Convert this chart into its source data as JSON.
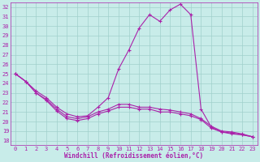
{
  "xlabel": "Windchill (Refroidissement éolien,°C)",
  "xlim": [
    -0.5,
    23.5
  ],
  "ylim": [
    17.5,
    32.5
  ],
  "yticks": [
    18,
    19,
    20,
    21,
    22,
    23,
    24,
    25,
    26,
    27,
    28,
    29,
    30,
    31,
    32
  ],
  "xticks": [
    0,
    1,
    2,
    3,
    4,
    5,
    6,
    7,
    8,
    9,
    10,
    11,
    12,
    13,
    14,
    15,
    16,
    17,
    18,
    19,
    20,
    21,
    22,
    23
  ],
  "bg_color": "#c8ece9",
  "grid_color": "#a0d0cc",
  "line_color": "#aa22aa",
  "line1_x": [
    0,
    1,
    2,
    3,
    4,
    5,
    6,
    7,
    8,
    9,
    10,
    11,
    12,
    13,
    14,
    15,
    16,
    17,
    18,
    19,
    20,
    21,
    22,
    23
  ],
  "line1_y": [
    25.0,
    24.2,
    23.2,
    22.5,
    21.5,
    20.8,
    20.5,
    20.6,
    21.5,
    22.5,
    25.5,
    27.5,
    29.8,
    31.2,
    30.5,
    31.7,
    32.3,
    31.2,
    21.3,
    19.4,
    18.9,
    18.8,
    18.6,
    18.4
  ],
  "line2_x": [
    0,
    1,
    2,
    3,
    4,
    5,
    6,
    7,
    8,
    9,
    10,
    11,
    12,
    13,
    14,
    15,
    16,
    17,
    18,
    19,
    20,
    21,
    22,
    23
  ],
  "line2_y": [
    25.0,
    24.2,
    23.0,
    22.3,
    21.3,
    20.5,
    20.3,
    20.5,
    21.0,
    21.3,
    21.8,
    21.8,
    21.5,
    21.5,
    21.3,
    21.2,
    21.0,
    20.8,
    20.3,
    19.5,
    19.0,
    18.9,
    18.7,
    18.4
  ],
  "line3_x": [
    0,
    1,
    2,
    3,
    4,
    5,
    6,
    7,
    8,
    9,
    10,
    11,
    12,
    13,
    14,
    15,
    16,
    17,
    18,
    19,
    20,
    21,
    22,
    23
  ],
  "line3_y": [
    25.0,
    24.2,
    23.0,
    22.2,
    21.1,
    20.3,
    20.1,
    20.3,
    20.8,
    21.1,
    21.5,
    21.5,
    21.3,
    21.3,
    21.0,
    21.0,
    20.8,
    20.6,
    20.2,
    19.3,
    18.9,
    18.7,
    18.6,
    18.4
  ],
  "tick_fontsize": 5,
  "xlabel_fontsize": 5.5
}
